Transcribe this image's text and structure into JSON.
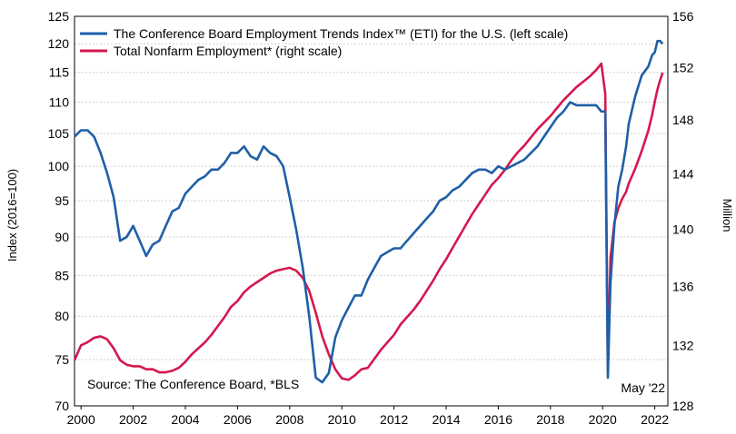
{
  "chart_data": {
    "type": "line",
    "title": "",
    "source": "Source: The Conference Board, *BLS",
    "date_note": "May '22",
    "xlabel": "",
    "ylabel_left": "Index (2016=100)",
    "ylabel_right": "Million",
    "x_range": [
      1999.75,
      2022.5
    ],
    "ylim_left": [
      70,
      125
    ],
    "ylim_right": [
      128,
      156
    ],
    "y_scale_left": "log",
    "y_scale_right": "log",
    "x_ticks": [
      "2000",
      "2002",
      "2004",
      "2006",
      "2008",
      "2010",
      "2012",
      "2014",
      "2016",
      "2018",
      "2020",
      "2022"
    ],
    "y_ticks_left": [
      "70",
      "75",
      "80",
      "85",
      "90",
      "95",
      "100",
      "105",
      "110",
      "115",
      "120",
      "125"
    ],
    "y_ticks_right": [
      "128",
      "132",
      "136",
      "140",
      "144",
      "148",
      "152",
      "156"
    ],
    "grid": true,
    "legend": "top-left",
    "series": [
      {
        "name": "The Conference Board Employment Trends Index™ (ETI) for the U.S. (left scale)",
        "axis": "left",
        "color": "#1f5fa8",
        "x": [
          1999.75,
          2000.0,
          2000.25,
          2000.5,
          2000.75,
          2001.0,
          2001.25,
          2001.5,
          2001.75,
          2002.0,
          2002.25,
          2002.5,
          2002.75,
          2003.0,
          2003.25,
          2003.5,
          2003.75,
          2004.0,
          2004.25,
          2004.5,
          2004.75,
          2005.0,
          2005.25,
          2005.5,
          2005.75,
          2006.0,
          2006.25,
          2006.5,
          2006.75,
          2007.0,
          2007.25,
          2007.5,
          2007.75,
          2008.0,
          2008.25,
          2008.5,
          2008.75,
          2009.0,
          2009.25,
          2009.5,
          2009.75,
          2010.0,
          2010.25,
          2010.5,
          2010.75,
          2011.0,
          2011.25,
          2011.5,
          2011.75,
          2012.0,
          2012.25,
          2012.5,
          2012.75,
          2013.0,
          2013.25,
          2013.5,
          2013.75,
          2014.0,
          2014.25,
          2014.5,
          2014.75,
          2015.0,
          2015.25,
          2015.5,
          2015.75,
          2016.0,
          2016.25,
          2016.5,
          2016.75,
          2017.0,
          2017.25,
          2017.5,
          2017.75,
          2018.0,
          2018.25,
          2018.5,
          2018.75,
          2019.0,
          2019.25,
          2019.5,
          2019.75,
          2019.95,
          2020.1,
          2020.2,
          2020.3,
          2020.45,
          2020.6,
          2020.75,
          2020.9,
          2021.0,
          2021.25,
          2021.5,
          2021.75,
          2021.9,
          2022.0,
          2022.1,
          2022.2,
          2022.3
        ],
        "values": [
          104.5,
          105.5,
          105.5,
          104.5,
          102.0,
          99.0,
          95.5,
          89.5,
          90.0,
          91.5,
          89.5,
          87.5,
          89.0,
          89.5,
          91.5,
          93.5,
          94.0,
          96.0,
          97.0,
          98.0,
          98.5,
          99.5,
          99.5,
          100.5,
          102.0,
          102.0,
          103.0,
          101.5,
          101.0,
          103.0,
          102.0,
          101.5,
          100.0,
          95.5,
          91.0,
          86.0,
          80.0,
          73.0,
          72.5,
          73.5,
          77.5,
          79.5,
          81.0,
          82.5,
          82.5,
          84.5,
          86.0,
          87.5,
          88.0,
          88.5,
          88.5,
          89.5,
          90.5,
          91.5,
          92.5,
          93.5,
          95.0,
          95.5,
          96.5,
          97.0,
          98.0,
          99.0,
          99.5,
          99.5,
          99.0,
          100.0,
          99.5,
          100.0,
          100.5,
          101.0,
          102.0,
          103.0,
          104.5,
          106.0,
          107.5,
          108.5,
          110.0,
          109.5,
          109.5,
          109.5,
          109.5,
          108.5,
          108.5,
          73.0,
          84.0,
          91.5,
          97.0,
          99.5,
          103.0,
          106.5,
          111.0,
          114.5,
          116.0,
          118.0,
          118.5,
          120.5,
          120.5,
          120.0
        ]
      },
      {
        "name": "Total Nonfarm Employment* (right scale)",
        "axis": "right",
        "color": "#d4184f",
        "x": [
          1999.75,
          2000.0,
          2000.25,
          2000.5,
          2000.75,
          2001.0,
          2001.25,
          2001.5,
          2001.75,
          2002.0,
          2002.25,
          2002.5,
          2002.75,
          2003.0,
          2003.25,
          2003.5,
          2003.75,
          2004.0,
          2004.25,
          2004.5,
          2004.75,
          2005.0,
          2005.25,
          2005.5,
          2005.75,
          2006.0,
          2006.25,
          2006.5,
          2006.75,
          2007.0,
          2007.25,
          2007.5,
          2007.75,
          2008.0,
          2008.25,
          2008.5,
          2008.75,
          2009.0,
          2009.25,
          2009.5,
          2009.75,
          2010.0,
          2010.25,
          2010.5,
          2010.75,
          2011.0,
          2011.25,
          2011.5,
          2011.75,
          2012.0,
          2012.25,
          2012.5,
          2012.75,
          2013.0,
          2013.25,
          2013.5,
          2013.75,
          2014.0,
          2014.25,
          2014.5,
          2014.75,
          2015.0,
          2015.25,
          2015.5,
          2015.75,
          2016.0,
          2016.25,
          2016.5,
          2016.75,
          2017.0,
          2017.25,
          2017.5,
          2017.75,
          2018.0,
          2018.25,
          2018.5,
          2018.75,
          2019.0,
          2019.25,
          2019.5,
          2019.75,
          2019.95,
          2020.1,
          2020.2,
          2020.3,
          2020.45,
          2020.6,
          2020.75,
          2020.9,
          2021.0,
          2021.25,
          2021.5,
          2021.75,
          2021.9,
          2022.0,
          2022.1,
          2022.2,
          2022.3
        ],
        "values": [
          131.0,
          132.0,
          132.2,
          132.5,
          132.6,
          132.4,
          131.8,
          131.0,
          130.7,
          130.6,
          130.6,
          130.4,
          130.4,
          130.2,
          130.2,
          130.3,
          130.5,
          130.9,
          131.4,
          131.8,
          132.2,
          132.7,
          133.3,
          133.9,
          134.6,
          135.0,
          135.6,
          136.0,
          136.3,
          136.6,
          136.9,
          137.1,
          137.2,
          137.3,
          137.1,
          136.6,
          135.7,
          134.2,
          132.6,
          131.4,
          130.4,
          129.8,
          129.7,
          130.0,
          130.4,
          130.5,
          131.1,
          131.7,
          132.2,
          132.7,
          133.4,
          133.9,
          134.4,
          135.0,
          135.7,
          136.4,
          137.2,
          137.9,
          138.7,
          139.5,
          140.3,
          141.1,
          141.8,
          142.5,
          143.2,
          143.7,
          144.3,
          145.0,
          145.6,
          146.1,
          146.7,
          147.3,
          147.8,
          148.3,
          148.9,
          149.5,
          150.0,
          150.5,
          150.9,
          151.3,
          151.8,
          152.3,
          150.0,
          130.4,
          138.0,
          140.5,
          141.5,
          142.2,
          142.7,
          143.3,
          144.4,
          145.7,
          147.2,
          148.4,
          149.4,
          150.3,
          151.0,
          151.6
        ]
      }
    ]
  }
}
